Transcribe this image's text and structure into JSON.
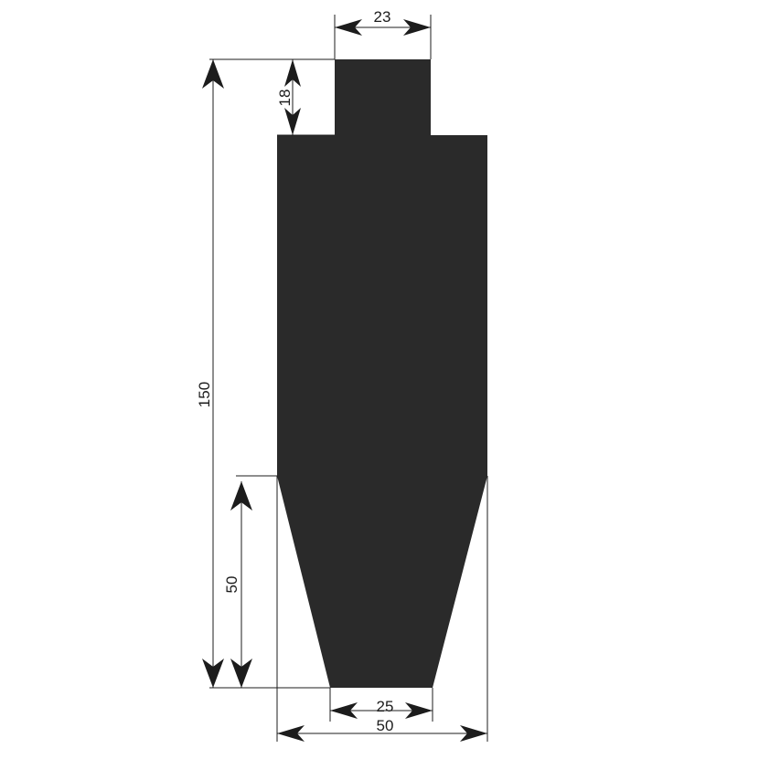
{
  "diagram": {
    "profile_color": "#2a2a2a",
    "line_color": "#1c1c1c",
    "dimensions": {
      "top_width": "23",
      "neck_height": "18",
      "total_height": "150",
      "taper_height": "50",
      "tip_width": "25",
      "body_width": "50"
    }
  }
}
